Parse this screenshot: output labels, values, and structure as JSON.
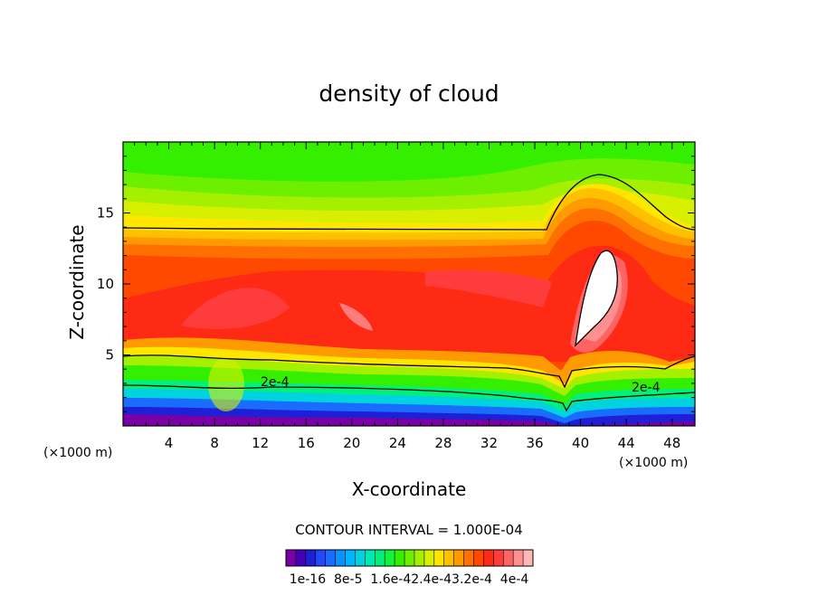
{
  "chart_data": {
    "type": "heatmap",
    "title": "density of cloud",
    "xlabel": "X-coordinate",
    "ylabel": "Z-coordinate",
    "x_unit": "(×1000 m)",
    "z_unit": "(×1000 m)",
    "xlim": [
      0,
      50
    ],
    "ylim": [
      0,
      20
    ],
    "x_ticks": [
      4,
      8,
      12,
      16,
      20,
      24,
      28,
      32,
      36,
      40,
      44,
      48
    ],
    "y_ticks": [
      5,
      10,
      15
    ],
    "contour_labels": [
      "2e-4",
      "2e-4"
    ],
    "contour_interval_text": "CONTOUR INTERVAL = 1.000E-04",
    "colorbar": {
      "tick_labels": [
        "1e-16",
        "8e-5",
        "1.6e-4",
        "2.4e-4",
        "3.2e-4",
        "4e-4"
      ],
      "label_text": "1e-16  8e-5  1.6e-42.4e-43.2e-4  4e-4",
      "colors": [
        "#7a00a6",
        "#4400b8",
        "#1f1fd6",
        "#1f48ff",
        "#1a6cff",
        "#0a92ff",
        "#00b4ff",
        "#00d2e0",
        "#00e8b4",
        "#00f07a",
        "#14f23c",
        "#34f000",
        "#6cf000",
        "#a4f000",
        "#d8f000",
        "#ffe600",
        "#ffc000",
        "#ff9a00",
        "#ff7000",
        "#ff4800",
        "#ff2a14",
        "#ff3c3c",
        "#ff6464",
        "#ff9090",
        "#ffb8b8"
      ]
    }
  }
}
